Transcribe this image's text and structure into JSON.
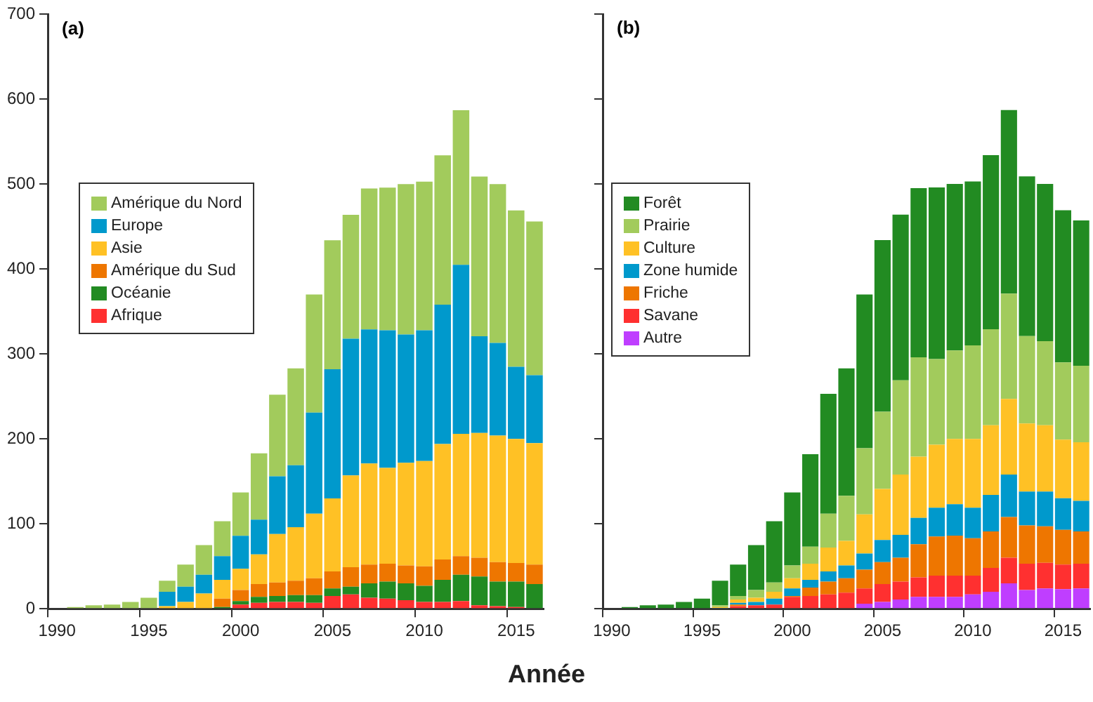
{
  "chart_data": [
    {
      "type": "bar",
      "title": "(a)",
      "xlabel": "Année",
      "stacked": true,
      "legend": "left",
      "ylim": [
        0,
        700
      ],
      "yticks": [
        0,
        100,
        200,
        300,
        400,
        500,
        600,
        700
      ],
      "categories": [
        "1990",
        null,
        null,
        null,
        null,
        "1995",
        null,
        null,
        null,
        null,
        "2000",
        null,
        null,
        null,
        null,
        "2005",
        null,
        null,
        null,
        null,
        "2010",
        null,
        null,
        null,
        null,
        "2015",
        null
      ],
      "series": [
        {
          "name": "Afrique",
          "color": "#ff3030",
          "values": [
            0,
            0,
            0,
            0,
            0,
            0,
            0,
            0,
            0,
            0,
            5,
            7,
            8,
            8,
            7,
            15,
            17,
            13,
            12,
            10,
            8,
            8,
            9,
            4,
            3,
            2,
            null
          ]
        },
        {
          "name": "Océanie",
          "color": "#228b22",
          "values": [
            0,
            0,
            0,
            0,
            0,
            0,
            0,
            0,
            0,
            2,
            4,
            7,
            7,
            8,
            9,
            9,
            9,
            17,
            20,
            20,
            19,
            26,
            31,
            34,
            29,
            30,
            29
          ]
        },
        {
          "name": "Amérique du Sud",
          "color": "#ee7600",
          "values": [
            0,
            0,
            0,
            0,
            0,
            0,
            0,
            0,
            0,
            10,
            13,
            15,
            16,
            17,
            20,
            20,
            23,
            22,
            21,
            21,
            23,
            24,
            22,
            22,
            23,
            22,
            23
          ]
        },
        {
          "name": "Asie",
          "color": "#ffc125",
          "values": [
            0,
            0,
            0,
            0,
            0,
            0,
            3,
            8,
            18,
            22,
            25,
            35,
            57,
            63,
            76,
            86,
            108,
            119,
            113,
            121,
            124,
            136,
            144,
            147,
            149,
            146,
            143
          ]
        },
        {
          "name": "Europe",
          "color": "#0099cc",
          "values": [
            0,
            0,
            0,
            0,
            0,
            0,
            17,
            18,
            22,
            28,
            39,
            41,
            68,
            73,
            119,
            152,
            161,
            158,
            162,
            151,
            154,
            164,
            199,
            114,
            109,
            85,
            80
          ]
        },
        {
          "name": "Amérique du Nord",
          "color": "#a2cb5c",
          "values": [
            null,
            2,
            4,
            5,
            8,
            13,
            13,
            26,
            35,
            41,
            51,
            78,
            96,
            114,
            139,
            152,
            146,
            166,
            168,
            177,
            175,
            176,
            182,
            188,
            187,
            184,
            181
          ]
        }
      ]
    },
    {
      "type": "bar",
      "title": "(b)",
      "stacked": true,
      "legend": "left",
      "tick_labels": "x",
      "ylim": [
        0,
        700
      ],
      "yticks": [
        0,
        100,
        200,
        300,
        400,
        500,
        600,
        700
      ],
      "categories": [
        "1990",
        null,
        null,
        null,
        null,
        "1995",
        null,
        null,
        null,
        null,
        "2000",
        null,
        null,
        null,
        null,
        "2005",
        null,
        null,
        null,
        null,
        "2010",
        null,
        null,
        null,
        null,
        "2015",
        null
      ],
      "series": [
        {
          "name": "Autre",
          "color": "#bf3eff",
          "values": [
            0,
            0,
            0,
            0,
            0,
            0,
            0,
            0,
            0,
            0,
            0,
            0,
            0,
            0,
            6,
            8,
            11,
            14,
            14,
            14,
            17,
            20,
            30,
            22,
            24,
            23,
            24
          ]
        },
        {
          "name": "Savane",
          "color": "#ff3030",
          "values": [
            0,
            0,
            0,
            0,
            0,
            0,
            0,
            3,
            4,
            5,
            14,
            15,
            17,
            19,
            18,
            21,
            21,
            23,
            25,
            25,
            22,
            28,
            30,
            31,
            30,
            29,
            29
          ]
        },
        {
          "name": "Friche",
          "color": "#ee7600",
          "values": [
            0,
            0,
            0,
            0,
            0,
            0,
            0,
            2,
            0,
            0,
            1,
            10,
            15,
            17,
            22,
            26,
            28,
            39,
            46,
            47,
            44,
            43,
            48,
            45,
            43,
            41,
            38
          ]
        },
        {
          "name": "Zone humide",
          "color": "#0099cc",
          "values": [
            0,
            0,
            0,
            0,
            0,
            null,
            1,
            2,
            4,
            7,
            9,
            9,
            12,
            15,
            19,
            26,
            27,
            31,
            34,
            37,
            36,
            43,
            50,
            40,
            41,
            37,
            36
          ]
        },
        {
          "name": "Culture",
          "color": "#ffc125",
          "values": [
            0,
            0,
            0,
            0,
            0,
            0,
            1,
            4,
            5,
            8,
            12,
            19,
            28,
            29,
            46,
            60,
            71,
            72,
            74,
            77,
            81,
            82,
            89,
            80,
            78,
            69,
            69
          ]
        },
        {
          "name": "Prairie",
          "color": "#a2cb5c",
          "values": [
            0,
            0,
            0,
            0,
            0,
            0,
            2,
            4,
            9,
            11,
            15,
            20,
            40,
            53,
            78,
            91,
            111,
            117,
            101,
            104,
            110,
            113,
            124,
            103,
            99,
            91,
            90
          ]
        },
        {
          "name": "Forêt",
          "color": "#228b22",
          "values": [
            null,
            2,
            4,
            5,
            8,
            12,
            29,
            37,
            53,
            72,
            86,
            109,
            141,
            150,
            181,
            202,
            195,
            199,
            202,
            196,
            193,
            205,
            216,
            188,
            185,
            179,
            171
          ]
        }
      ]
    }
  ]
}
